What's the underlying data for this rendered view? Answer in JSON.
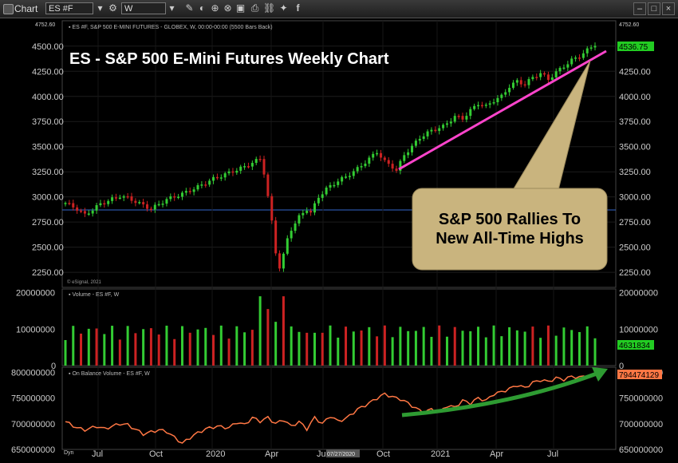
{
  "toolbar": {
    "app_title": "Chart",
    "symbol_value": "ES #F",
    "interval_value": "W",
    "icons": [
      "gear-icon",
      "pencil-icon",
      "drawing-icon",
      "chart-style-icon",
      "cursor-icon",
      "save-icon",
      "print-icon",
      "link-icon",
      "twitter-icon",
      "facebook-icon"
    ],
    "window_controls": [
      "minimize",
      "maximize",
      "close"
    ]
  },
  "price_pane": {
    "header": "ES #F, S&P 500 E-MINI FUTURES - GLOBEX, W, 00:00-00:00 (5500 Bars Back)",
    "top_value": "4752.60",
    "last_price": "4536.75",
    "copyright": "© eSignal, 2021",
    "title": "ES - S&P 500 E-Mini Futures Weekly Chart",
    "callout": [
      "S&P 500 Rallies To",
      "New All-Time Highs"
    ]
  },
  "volume_pane": {
    "header": "Volume - ES #F, W",
    "last_value": "4631834"
  },
  "obv_pane": {
    "header": "On Balance Volume - ES #F, W",
    "last_value": "794474129"
  },
  "time_axis": {
    "left_label": "Dyn",
    "cursor_date": "07/27/2020"
  },
  "colors": {
    "up": "#33cc33",
    "down": "#cc2222",
    "trend": "#ff44cc",
    "obv": "#ff7744",
    "arrow": "#2e9b32",
    "hline": "#3366cc",
    "last_badge": "#22cc22",
    "callout_bg": "#c9b47e"
  },
  "chart_data": [
    {
      "type": "candlestick",
      "series_name": "ES #F",
      "x_tick_labels": [
        "Jul",
        "Oct",
        "2020",
        "Apr",
        "Jul",
        "Oct",
        "2021",
        "Apr",
        "Jul"
      ],
      "y_tick_labels": [
        "4500.00",
        "4250.00",
        "4000.00",
        "3750.00",
        "3500.00",
        "3250.00",
        "3000.00",
        "2750.00",
        "2500.00",
        "2250.00"
      ],
      "ylim": [
        2100,
        4752.6
      ],
      "horizontal_line": 2870,
      "anchors": [
        [
          0,
          2940
        ],
        [
          3,
          2880
        ],
        [
          5,
          2820
        ],
        [
          9,
          2930
        ],
        [
          14,
          3010
        ],
        [
          16,
          2990
        ],
        [
          22,
          2880
        ],
        [
          26,
          2975
        ],
        [
          30,
          3030
        ],
        [
          34,
          3100
        ],
        [
          38,
          3180
        ],
        [
          42,
          3240
        ],
        [
          46,
          3300
        ],
        [
          50,
          3380
        ],
        [
          51,
          3240
        ],
        [
          52,
          3000
        ],
        [
          53,
          2750
        ],
        [
          54,
          2450
        ],
        [
          55,
          2300
        ],
        [
          56,
          2420
        ],
        [
          57,
          2580
        ],
        [
          58,
          2680
        ],
        [
          60,
          2800
        ],
        [
          62,
          2880
        ],
        [
          63,
          2840
        ],
        [
          65,
          3000
        ],
        [
          67,
          3080
        ],
        [
          70,
          3160
        ],
        [
          72,
          3200
        ],
        [
          75,
          3280
        ],
        [
          78,
          3380
        ],
        [
          80,
          3450
        ],
        [
          82,
          3350
        ],
        [
          84,
          3300
        ],
        [
          85,
          3260
        ],
        [
          87,
          3420
        ],
        [
          89,
          3500
        ],
        [
          91,
          3590
        ],
        [
          94,
          3660
        ],
        [
          97,
          3700
        ],
        [
          100,
          3800
        ],
        [
          102,
          3780
        ],
        [
          104,
          3860
        ],
        [
          106,
          3930
        ],
        [
          108,
          3900
        ],
        [
          110,
          3960
        ],
        [
          112,
          4000
        ],
        [
          114,
          4100
        ],
        [
          116,
          4150
        ],
        [
          118,
          4120
        ],
        [
          120,
          4190
        ],
        [
          122,
          4230
        ],
        [
          124,
          4170
        ],
        [
          126,
          4240
        ],
        [
          128,
          4300
        ],
        [
          130,
          4360
        ],
        [
          132,
          4400
        ],
        [
          134,
          4460
        ],
        [
          136,
          4520
        ]
      ]
    },
    {
      "type": "bar",
      "series_name": "Volume",
      "y_tick_labels": [
        "20000000",
        "10000000",
        "0"
      ],
      "ylim": [
        0,
        21000000
      ]
    },
    {
      "type": "line",
      "series_name": "On Balance Volume",
      "y_tick_labels": [
        "800000000",
        "750000000",
        "700000000",
        "650000000"
      ],
      "ylim": [
        650000000,
        810000000
      ],
      "anchors": [
        [
          0,
          704
        ],
        [
          3,
          692
        ],
        [
          5,
          688
        ],
        [
          8,
          695
        ],
        [
          10,
          690
        ],
        [
          14,
          700
        ],
        [
          16,
          698
        ],
        [
          20,
          680
        ],
        [
          24,
          688
        ],
        [
          26,
          685
        ],
        [
          30,
          662
        ],
        [
          33,
          678
        ],
        [
          36,
          690
        ],
        [
          39,
          695
        ],
        [
          42,
          692
        ],
        [
          44,
          703
        ],
        [
          46,
          698
        ],
        [
          48,
          712
        ],
        [
          50,
          705
        ],
        [
          52,
          712
        ],
        [
          54,
          700
        ],
        [
          56,
          708
        ],
        [
          58,
          695
        ],
        [
          60,
          704
        ],
        [
          62,
          690
        ],
        [
          64,
          712
        ],
        [
          66,
          700
        ],
        [
          68,
          715
        ],
        [
          70,
          705
        ],
        [
          72,
          710
        ],
        [
          75,
          728
        ],
        [
          78,
          740
        ],
        [
          80,
          750
        ],
        [
          82,
          758
        ],
        [
          84,
          752
        ],
        [
          86,
          748
        ],
        [
          88,
          740
        ],
        [
          90,
          730
        ],
        [
          92,
          722
        ],
        [
          94,
          728
        ],
        [
          96,
          722
        ],
        [
          98,
          735
        ],
        [
          100,
          732
        ],
        [
          102,
          745
        ],
        [
          104,
          740
        ],
        [
          106,
          750
        ],
        [
          108,
          745
        ],
        [
          110,
          758
        ],
        [
          112,
          762
        ],
        [
          114,
          768
        ],
        [
          116,
          775
        ],
        [
          118,
          770
        ],
        [
          120,
          780
        ],
        [
          122,
          785
        ],
        [
          124,
          782
        ],
        [
          126,
          789
        ],
        [
          128,
          786
        ],
        [
          130,
          792
        ],
        [
          132,
          790
        ],
        [
          134,
          794
        ],
        [
          136,
          794
        ]
      ]
    }
  ]
}
